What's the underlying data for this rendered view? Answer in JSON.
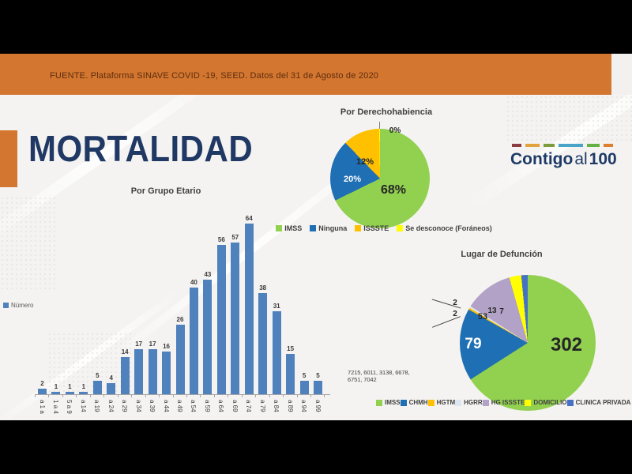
{
  "header": {
    "source": "FUENTE. Plataforma SINAVE COVID -19, SEED. Datos del 31 de Agosto de 2020"
  },
  "title": "MORTALIDAD",
  "colors": {
    "band_orange": "#d3762f",
    "title_navy": "#1f3864",
    "bar_blue": "#4f81bd",
    "slide_bg": "#f4f3f1"
  },
  "logo": {
    "part1": "Contigo",
    "part2": "al",
    "part3": "100",
    "text_color": "#1e3a66",
    "dash_colors": [
      "#8c3b40",
      "#e2a33d",
      "#7d9c3e",
      "#4aa4c8",
      "#64b245",
      "#de7f30"
    ]
  },
  "chart_data": [
    {
      "id": "por_grupo_etario",
      "type": "bar",
      "title": "Por Grupo Etario",
      "legend": [
        "Número"
      ],
      "legend_position": "left",
      "categories": [
        "a 1 a",
        "1 a 4",
        "5 a 9",
        "a 14",
        "a 19",
        "a 24",
        "a 29",
        "a 34",
        "a 39",
        "a 44",
        "a 49",
        "a 54",
        "a 59",
        "a 64",
        "a 69",
        "a 74",
        "a 79",
        "a 84",
        "a 89",
        "a 94",
        "a 99"
      ],
      "values": [
        2,
        1,
        1,
        1,
        5,
        4,
        14,
        17,
        17,
        16,
        26,
        40,
        43,
        56,
        57,
        64,
        38,
        31,
        15,
        5,
        5
      ],
      "bar_color": "#4f81bd",
      "annotation": "7215, 6011, 3138, 6678, 6751, 7042",
      "ylim": [
        0,
        70
      ],
      "grid": false
    },
    {
      "id": "por_derechohabiencia",
      "type": "pie",
      "title": "Por Derechohabiencia",
      "legend_position": "bottom",
      "slices": [
        {
          "label": "IMSS",
          "value": 68,
          "display": "68%",
          "color": "#92d050"
        },
        {
          "label": "Ninguna",
          "value": 20,
          "display": "20%",
          "color": "#1f6fb5"
        },
        {
          "label": "ISSSTE",
          "value": 12,
          "display": "12%",
          "color": "#ffc000"
        },
        {
          "label": "Se desconoce (Foráneos)",
          "value": 0,
          "display": "0%",
          "color": "#ffff00"
        }
      ]
    },
    {
      "id": "lugar_de_defuncion",
      "type": "pie",
      "title": "Lugar de Defunción",
      "legend_position": "bottom",
      "slices": [
        {
          "label": "IMSS",
          "value": 302,
          "display": "302",
          "color": "#92d050"
        },
        {
          "label": "CHMH",
          "value": 79,
          "display": "79",
          "color": "#1f6fb5"
        },
        {
          "label": "HGTM",
          "value": 2,
          "display": "2",
          "color": "#ffc000"
        },
        {
          "label": "HGRR",
          "value": 2,
          "display": "2",
          "color": "#dce6f1"
        },
        {
          "label": "HG ISSSTE",
          "value": 53,
          "display": "53",
          "color": "#b3a2c7"
        },
        {
          "label": "DOMICILIO",
          "value": 13,
          "display": "13",
          "color": "#ffff00"
        },
        {
          "label": "CLINICA PRIVADA",
          "value": 7,
          "display": "7",
          "color": "#4472c4"
        }
      ]
    }
  ]
}
